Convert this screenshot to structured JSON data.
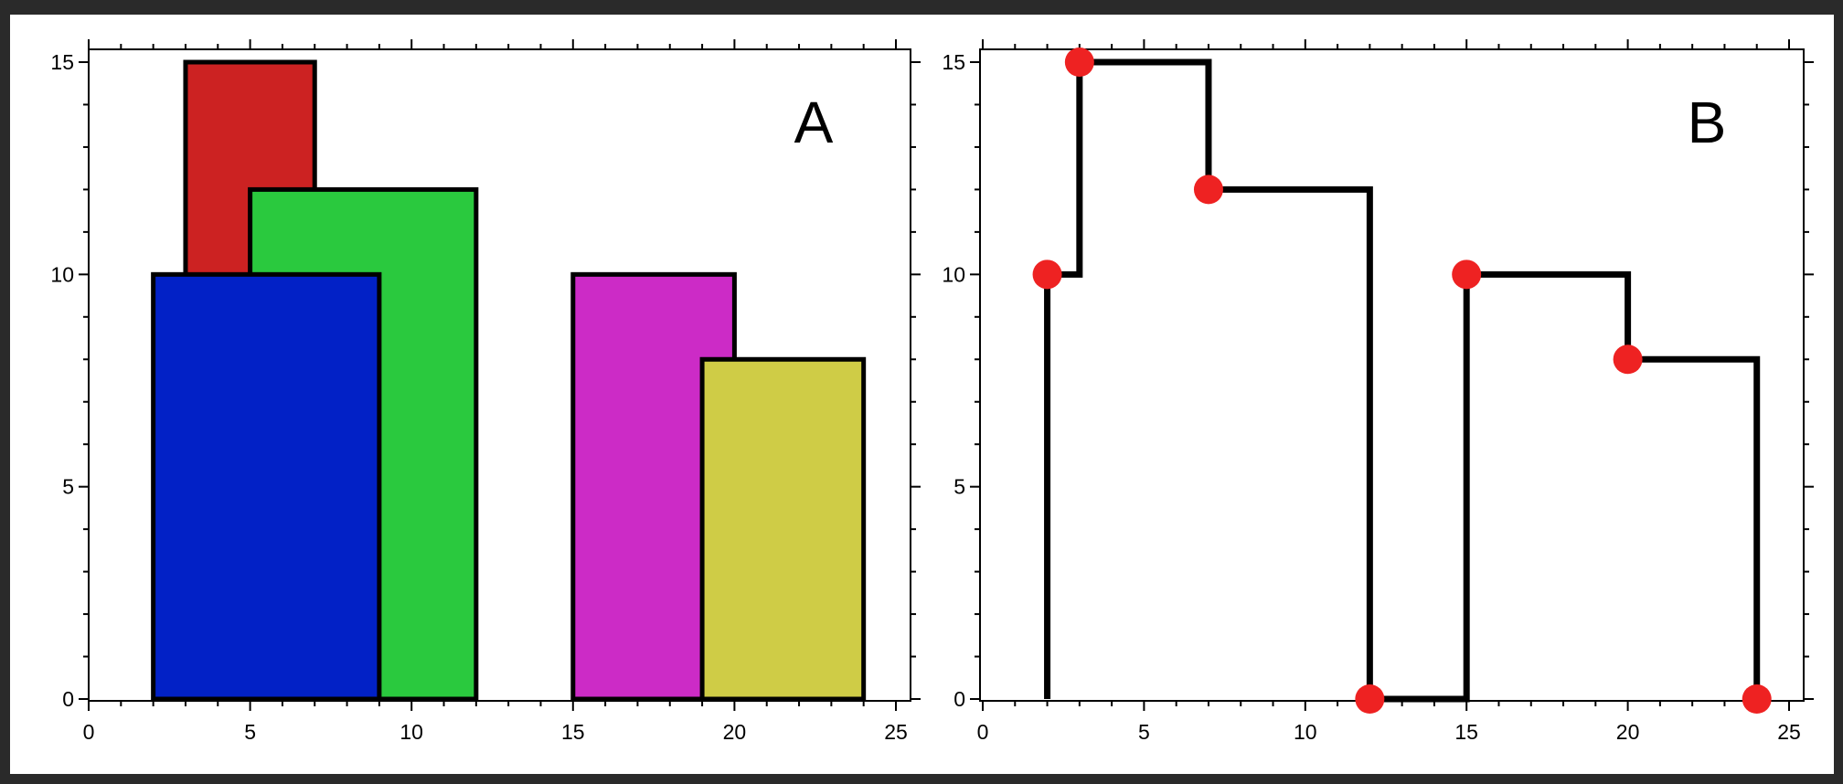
{
  "chart_data": [
    {
      "type": "bar",
      "panel_label": "A",
      "xlim": [
        0,
        25
      ],
      "ylim": [
        0,
        15
      ],
      "x_ticks": [
        0,
        5,
        10,
        15,
        20,
        25
      ],
      "y_ticks": [
        0,
        5,
        10,
        15
      ],
      "grid": false,
      "buildings": [
        {
          "left": 3,
          "right": 7,
          "height": 15,
          "color": "#cc2222"
        },
        {
          "left": 5,
          "right": 12,
          "height": 12,
          "color": "#2ac93e"
        },
        {
          "left": 2,
          "right": 9,
          "height": 10,
          "color": "#0221c6"
        },
        {
          "left": 15,
          "right": 20,
          "height": 10,
          "color": "#cc2bc6"
        },
        {
          "left": 19,
          "right": 24,
          "height": 8,
          "color": "#cfcc46"
        }
      ]
    },
    {
      "type": "line",
      "panel_label": "B",
      "xlim": [
        0,
        25
      ],
      "ylim": [
        0,
        15
      ],
      "x_ticks": [
        0,
        5,
        10,
        15,
        20,
        25
      ],
      "y_ticks": [
        0,
        5,
        10,
        15
      ],
      "grid": false,
      "marker_color": "#ee2222",
      "key_points": [
        [
          2,
          10
        ],
        [
          3,
          15
        ],
        [
          7,
          12
        ],
        [
          12,
          0
        ],
        [
          15,
          10
        ],
        [
          20,
          8
        ],
        [
          24,
          0
        ]
      ]
    }
  ]
}
